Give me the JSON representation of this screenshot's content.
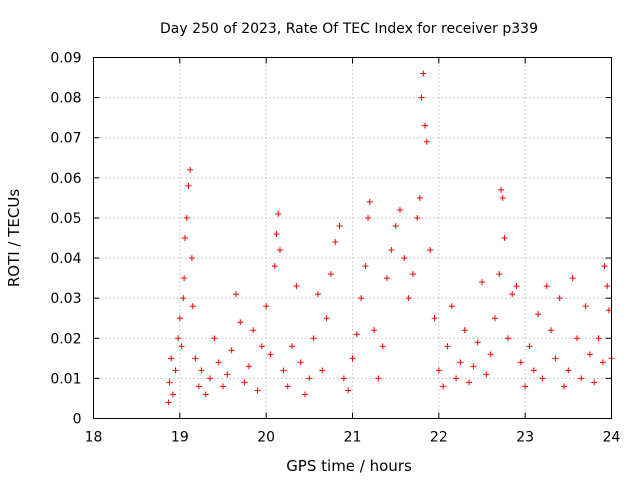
{
  "chart_data": {
    "type": "scatter",
    "title": "Day 250 of 2023, Rate Of TEC Index for receiver p339",
    "xlabel": "GPS time / hours",
    "ylabel": "ROTI / TECUs",
    "xlim": [
      18,
      24
    ],
    "ylim": [
      0,
      0.09
    ],
    "x_ticks": [
      "18",
      "19",
      "20",
      "21",
      "22",
      "23",
      "24"
    ],
    "y_ticks": [
      "0",
      "0.01",
      "0.02",
      "0.03",
      "0.04",
      "0.05",
      "0.06",
      "0.07",
      "0.08",
      "0.09"
    ],
    "grid": true,
    "marker": "plus",
    "color": "#ff0000",
    "series": [
      {
        "points": [
          [
            18.87,
            0.004
          ],
          [
            18.88,
            0.009
          ],
          [
            18.9,
            0.015
          ],
          [
            18.92,
            0.006
          ],
          [
            18.95,
            0.012
          ],
          [
            18.98,
            0.02
          ],
          [
            19.0,
            0.025
          ],
          [
            19.02,
            0.018
          ],
          [
            19.04,
            0.03
          ],
          [
            19.05,
            0.035
          ],
          [
            19.06,
            0.045
          ],
          [
            19.08,
            0.05
          ],
          [
            19.1,
            0.058
          ],
          [
            19.12,
            0.062
          ],
          [
            19.14,
            0.04
          ],
          [
            19.15,
            0.028
          ],
          [
            19.18,
            0.015
          ],
          [
            19.22,
            0.008
          ],
          [
            19.25,
            0.012
          ],
          [
            19.3,
            0.006
          ],
          [
            19.35,
            0.01
          ],
          [
            19.4,
            0.02
          ],
          [
            19.45,
            0.014
          ],
          [
            19.5,
            0.008
          ],
          [
            19.55,
            0.011
          ],
          [
            19.6,
            0.017
          ],
          [
            19.65,
            0.031
          ],
          [
            19.7,
            0.024
          ],
          [
            19.75,
            0.009
          ],
          [
            19.8,
            0.013
          ],
          [
            19.85,
            0.022
          ],
          [
            19.9,
            0.007
          ],
          [
            19.95,
            0.018
          ],
          [
            20.0,
            0.028
          ],
          [
            20.05,
            0.016
          ],
          [
            20.1,
            0.038
          ],
          [
            20.12,
            0.046
          ],
          [
            20.14,
            0.051
          ],
          [
            20.16,
            0.042
          ],
          [
            20.2,
            0.012
          ],
          [
            20.25,
            0.008
          ],
          [
            20.3,
            0.018
          ],
          [
            20.35,
            0.033
          ],
          [
            20.4,
            0.014
          ],
          [
            20.45,
            0.006
          ],
          [
            20.5,
            0.01
          ],
          [
            20.55,
            0.02
          ],
          [
            20.6,
            0.031
          ],
          [
            20.65,
            0.012
          ],
          [
            20.7,
            0.025
          ],
          [
            20.75,
            0.036
          ],
          [
            20.8,
            0.044
          ],
          [
            20.85,
            0.048
          ],
          [
            20.9,
            0.01
          ],
          [
            20.95,
            0.007
          ],
          [
            21.0,
            0.015
          ],
          [
            21.05,
            0.021
          ],
          [
            21.1,
            0.03
          ],
          [
            21.15,
            0.038
          ],
          [
            21.18,
            0.05
          ],
          [
            21.2,
            0.054
          ],
          [
            21.25,
            0.022
          ],
          [
            21.3,
            0.01
          ],
          [
            21.35,
            0.018
          ],
          [
            21.4,
            0.035
          ],
          [
            21.45,
            0.042
          ],
          [
            21.5,
            0.048
          ],
          [
            21.55,
            0.052
          ],
          [
            21.6,
            0.04
          ],
          [
            21.65,
            0.03
          ],
          [
            21.7,
            0.036
          ],
          [
            21.75,
            0.05
          ],
          [
            21.78,
            0.055
          ],
          [
            21.8,
            0.08
          ],
          [
            21.82,
            0.086
          ],
          [
            21.84,
            0.073
          ],
          [
            21.86,
            0.069
          ],
          [
            21.9,
            0.042
          ],
          [
            21.95,
            0.025
          ],
          [
            22.0,
            0.012
          ],
          [
            22.05,
            0.008
          ],
          [
            22.1,
            0.018
          ],
          [
            22.15,
            0.028
          ],
          [
            22.2,
            0.01
          ],
          [
            22.25,
            0.014
          ],
          [
            22.3,
            0.022
          ],
          [
            22.35,
            0.009
          ],
          [
            22.4,
            0.013
          ],
          [
            22.45,
            0.019
          ],
          [
            22.5,
            0.034
          ],
          [
            22.55,
            0.011
          ],
          [
            22.6,
            0.016
          ],
          [
            22.65,
            0.025
          ],
          [
            22.7,
            0.036
          ],
          [
            22.72,
            0.057
          ],
          [
            22.74,
            0.055
          ],
          [
            22.76,
            0.045
          ],
          [
            22.8,
            0.02
          ],
          [
            22.85,
            0.031
          ],
          [
            22.9,
            0.033
          ],
          [
            22.95,
            0.014
          ],
          [
            23.0,
            0.008
          ],
          [
            23.05,
            0.018
          ],
          [
            23.1,
            0.012
          ],
          [
            23.15,
            0.026
          ],
          [
            23.2,
            0.01
          ],
          [
            23.25,
            0.033
          ],
          [
            23.3,
            0.022
          ],
          [
            23.35,
            0.015
          ],
          [
            23.4,
            0.03
          ],
          [
            23.45,
            0.008
          ],
          [
            23.5,
            0.012
          ],
          [
            23.55,
            0.035
          ],
          [
            23.6,
            0.02
          ],
          [
            23.65,
            0.01
          ],
          [
            23.7,
            0.028
          ],
          [
            23.75,
            0.016
          ],
          [
            23.8,
            0.009
          ],
          [
            23.85,
            0.02
          ],
          [
            23.9,
            0.014
          ],
          [
            23.92,
            0.038
          ],
          [
            23.95,
            0.033
          ],
          [
            23.97,
            0.027
          ],
          [
            24.0,
            0.015
          ]
        ]
      }
    ]
  }
}
